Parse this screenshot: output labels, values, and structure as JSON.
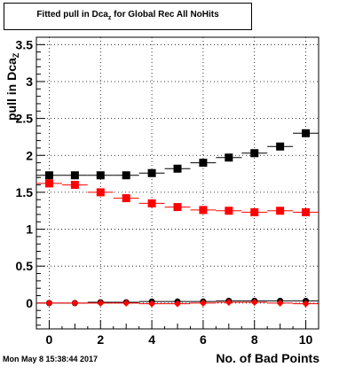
{
  "title": {
    "prefix": "Fitted pull in Dca",
    "sub": "z",
    "suffix": "  for Global Rec All NoHits"
  },
  "ylabel": {
    "main": "pull in Dca",
    "sub": "Z"
  },
  "xlabel": "No. of Bad Points",
  "datestamp": "Mon May  8 15:38:44 2017",
  "chart_data": {
    "type": "scatter",
    "title": "Fitted pull in Dca_z  for Global Rec All NoHits",
    "xlabel": "No. of Bad Points",
    "ylabel": "pull in Dca_Z",
    "xlim": [
      -0.5,
      10.5
    ],
    "ylim": [
      -0.35,
      3.6
    ],
    "x_ticks": [
      0,
      2,
      4,
      6,
      8,
      10
    ],
    "x_tick_labels": [
      "0",
      "2",
      "4",
      "6",
      "8",
      "10"
    ],
    "y_ticks": [
      0,
      0.5,
      1,
      1.5,
      2,
      2.5,
      3,
      3.5
    ],
    "y_tick_labels": [
      "0",
      "0.5",
      "1",
      "1.5",
      "2",
      "2.5",
      "3",
      "3.5"
    ],
    "grid": true,
    "x": [
      0,
      1,
      2,
      3,
      4,
      5,
      6,
      7,
      8,
      9,
      10
    ],
    "series": [
      {
        "color": "#000000",
        "marker": "square",
        "values": [
          1.73,
          1.73,
          1.73,
          1.73,
          1.76,
          1.82,
          1.9,
          1.97,
          2.03,
          2.12,
          2.3
        ]
      },
      {
        "color": "#ff0000",
        "marker": "square",
        "values": [
          1.62,
          1.6,
          1.5,
          1.42,
          1.35,
          1.3,
          1.26,
          1.25,
          1.23,
          1.25,
          1.23
        ]
      },
      {
        "color": "#000000",
        "marker": "circle",
        "values": [
          0.0,
          0.0,
          0.01,
          0.01,
          0.02,
          0.02,
          0.02,
          0.03,
          0.03,
          0.03,
          0.03
        ]
      },
      {
        "color": "#ff0000",
        "marker": "diamond",
        "values": [
          0.0,
          0.0,
          0.0,
          0.0,
          -0.01,
          -0.01,
          0.0,
          0.01,
          0.01,
          0.0,
          -0.01
        ]
      }
    ]
  }
}
